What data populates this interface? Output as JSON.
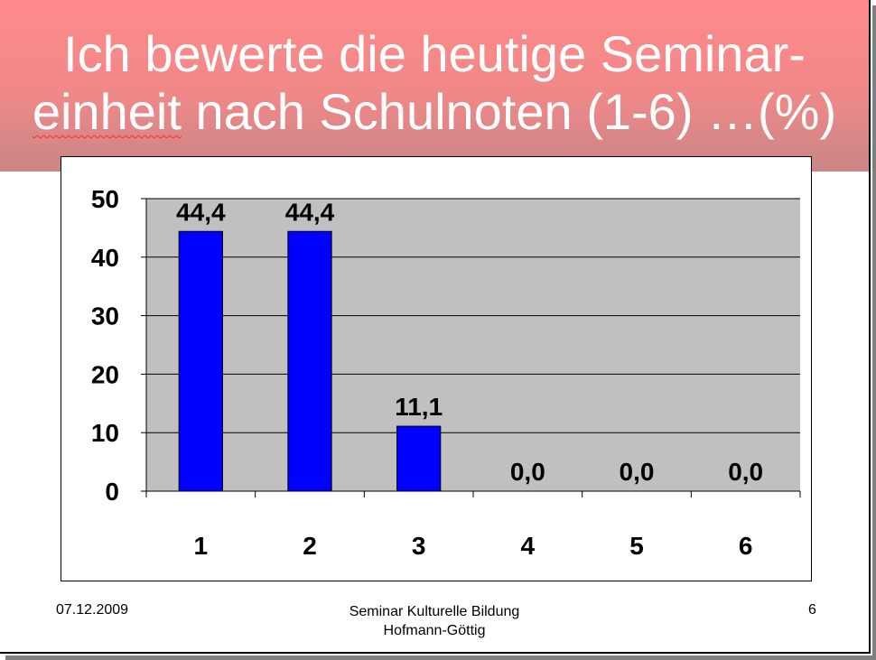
{
  "slide": {
    "title_line1": "Ich bewerte die heutige Seminar-",
    "title_line2_word1": "einheit",
    "title_line2_rest": " nach Schulnoten (1-6) …(%)"
  },
  "footer": {
    "date": "07.12.2009",
    "center_line1": "Seminar Kulturelle Bildung",
    "center_line2": "Hofmann-Göttig",
    "page": "6"
  },
  "colors": {
    "title_band": "#f08888",
    "plot_area": "#c0c0c0",
    "bar": "#0000ff"
  },
  "chart_data": {
    "type": "bar",
    "categories": [
      "1",
      "2",
      "3",
      "4",
      "5",
      "6"
    ],
    "values": [
      44.4,
      44.4,
      11.1,
      0.0,
      0.0,
      0.0
    ],
    "data_labels": [
      "44,4",
      "44,4",
      "11,1",
      "0,0",
      "0,0",
      "0,0"
    ],
    "y_ticks": [
      "0",
      "10",
      "20",
      "30",
      "40",
      "50"
    ],
    "ylim": [
      0,
      50
    ],
    "grid": true,
    "legend": "none"
  }
}
